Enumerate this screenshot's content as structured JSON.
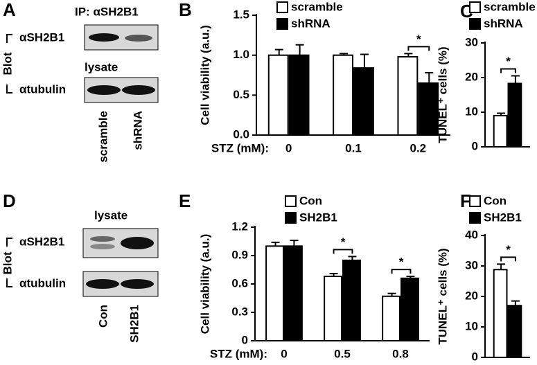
{
  "panels": [
    "A",
    "B",
    "C",
    "D",
    "E",
    "F"
  ],
  "blots": [
    {
      "ip": "IP: αSH2B1",
      "rows": [
        "αSH2B1",
        "αtubulin"
      ],
      "lysate": "lysate",
      "blot": "Blot",
      "lanes": [
        "scramble",
        "shRNA"
      ]
    },
    {
      "rows": [
        "αSH2B1",
        "αtubulin"
      ],
      "lysate": "lysate",
      "blot": "Blot",
      "lanes": [
        "Con",
        "SH2B1"
      ]
    }
  ],
  "chart_data": [
    {
      "type": "bar",
      "y_label": "Cell viability (a.u.)",
      "x_label": "STZ (mM):",
      "categories": [
        "0",
        "0.1",
        "0.2"
      ],
      "series": [
        {
          "name": "scramble",
          "color": "#ffffff",
          "values": [
            1.0,
            1.0,
            0.98
          ],
          "errors": [
            0.07,
            0.02,
            0.04
          ]
        },
        {
          "name": "shRNA",
          "color": "#000000",
          "values": [
            1.0,
            0.84,
            0.65
          ],
          "errors": [
            0.13,
            0.17,
            0.13
          ]
        }
      ],
      "significance": [
        null,
        null,
        "*"
      ],
      "ylim": [
        0,
        1.5
      ],
      "yticks": [
        {
          "value": 0,
          "label": "0.0"
        },
        0.5,
        {
          "value": 1,
          "label": "1.0"
        },
        1.5
      ]
    },
    {
      "type": "bar",
      "y_label": "TUNEL⁺ cells (%)",
      "categories": [
        null
      ],
      "series": [
        {
          "name": "scramble",
          "color": "#ffffff",
          "values": [
            9
          ],
          "errors": [
            0.7
          ]
        },
        {
          "name": "shRNA",
          "color": "#000000",
          "values": [
            18.3
          ],
          "errors": [
            2.2
          ]
        }
      ],
      "significance": [
        "*"
      ],
      "ylim": [
        0,
        30
      ],
      "yticks": [
        0,
        10,
        20,
        30
      ]
    },
    {
      "type": "bar",
      "y_label": "Cell viability (a.u.)",
      "x_label": "STZ (mM):",
      "categories": [
        "0",
        "0.5",
        "0.8"
      ],
      "series": [
        {
          "name": "Con",
          "color": "#ffffff",
          "values": [
            1.0,
            0.68,
            0.47
          ],
          "errors": [
            0.04,
            0.03,
            0.03
          ]
        },
        {
          "name": "SH2B1",
          "color": "#000000",
          "values": [
            1.0,
            0.85,
            0.66
          ],
          "errors": [
            0.06,
            0.04,
            0.02
          ]
        }
      ],
      "significance": [
        null,
        "*",
        "*"
      ],
      "ylim": [
        0,
        1.2
      ],
      "yticks": [
        0,
        0.3,
        0.6,
        0.9,
        1.2
      ]
    },
    {
      "type": "bar",
      "y_label": "TUNEL⁺ cells (%)",
      "categories": [
        null
      ],
      "series": [
        {
          "name": "Con",
          "color": "#ffffff",
          "values": [
            28.8
          ],
          "errors": [
            1.8
          ]
        },
        {
          "name": "SH2B1",
          "color": "#000000",
          "values": [
            17
          ],
          "errors": [
            1.5
          ]
        }
      ],
      "significance": [
        "*"
      ],
      "ylim": [
        0,
        40
      ],
      "yticks": [
        0,
        10,
        20,
        30,
        40
      ]
    }
  ]
}
